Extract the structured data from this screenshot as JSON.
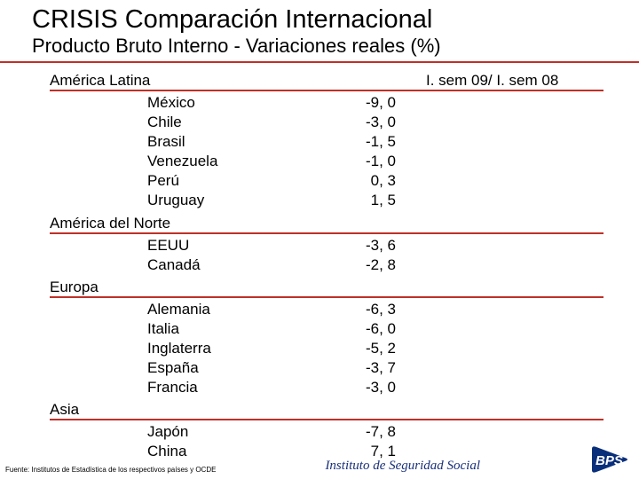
{
  "colors": {
    "rule": "#c03028",
    "inst": "#18307a",
    "logo_blue": "#0a2f7a",
    "text": "#000000"
  },
  "title": "CRISIS Comparación Internacional",
  "subtitle": "Producto Bruto Interno  -   Variaciones reales (%)",
  "column_header": "I. sem 09/  I. sem 08",
  "regions": [
    {
      "name": "América Latina",
      "show_column_header": true,
      "rows": [
        {
          "country": "México",
          "value": "-9, 0"
        },
        {
          "country": "Chile",
          "value": "-3, 0"
        },
        {
          "country": "Brasil",
          "value": "-1, 5"
        },
        {
          "country": "Venezuela",
          "value": "-1, 0"
        },
        {
          "country": "Perú",
          "value": "0, 3"
        },
        {
          "country": "Uruguay",
          "value": "1, 5"
        }
      ]
    },
    {
      "name": "América del Norte",
      "show_column_header": false,
      "rows": [
        {
          "country": "EEUU",
          "value": "-3, 6"
        },
        {
          "country": "Canadá",
          "value": "-2, 8"
        }
      ]
    },
    {
      "name": "Europa",
      "show_column_header": false,
      "rows": [
        {
          "country": "Alemania",
          "value": "-6, 3"
        },
        {
          "country": "Italia",
          "value": "-6, 0"
        },
        {
          "country": "Inglaterra",
          "value": "-5, 2"
        },
        {
          "country": "España",
          "value": "-3, 7"
        },
        {
          "country": "Francia",
          "value": "-3, 0"
        }
      ]
    },
    {
      "name": "Asia",
      "show_column_header": false,
      "rows": [
        {
          "country": "Japón",
          "value": "-7, 8"
        },
        {
          "country": "China",
          "value": "7, 1"
        }
      ]
    }
  ],
  "footer": {
    "source": "Fuente: Institutos de Estadística de los respectivos países y OCDE",
    "institution": "Instituto de Seguridad Social",
    "logo_text": "BPS"
  }
}
